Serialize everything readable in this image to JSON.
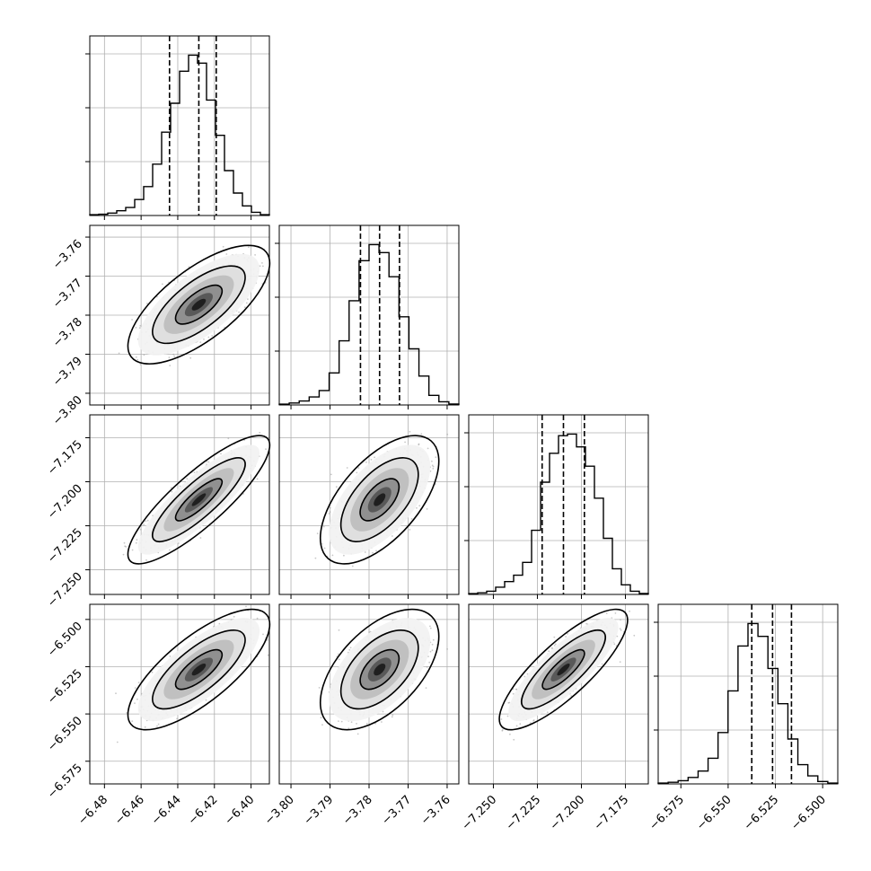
{
  "chart_data": {
    "type": "corner",
    "title": "",
    "parameters": [
      {
        "range": [
          -6.488,
          -6.39
        ],
        "xticks": [
          -6.48,
          -6.46,
          -6.44,
          -6.42,
          -6.4
        ],
        "xtick_labels": [
          "−6.48",
          "−6.46",
          "−6.44",
          "−6.42",
          "−6.40"
        ],
        "quantiles": [
          -6.4445,
          -6.4285,
          -6.419
        ],
        "hist_counts": [
          0.5,
          0.8,
          1.5,
          3,
          5,
          10,
          18,
          32,
          52,
          70,
          90,
          100,
          95,
          72,
          50,
          28,
          14,
          6,
          2,
          0.5
        ]
      },
      {
        "range": [
          -3.803,
          -3.757
        ],
        "xticks": [
          -3.8,
          -3.79,
          -3.78,
          -3.77,
          -3.76
        ],
        "xtick_labels": [
          "−3.80",
          "−3.79",
          "−3.78",
          "−3.77",
          "−3.76"
        ],
        "yticks": [
          -3.76,
          -3.77,
          -3.78,
          -3.79,
          -3.8
        ],
        "ytick_labels": [
          "−3.76",
          "−3.77",
          "−3.78",
          "−3.79",
          "−3.80"
        ],
        "quantiles": [
          -3.7822,
          -3.7773,
          -3.7722
        ],
        "hist_counts": [
          0.5,
          1.2,
          2.5,
          5,
          9,
          20,
          40,
          65,
          90,
          100,
          95,
          80,
          55,
          35,
          18,
          6,
          2,
          0.6
        ]
      },
      {
        "range": [
          -7.264,
          -7.162
        ],
        "xticks": [
          -7.25,
          -7.225,
          -7.2,
          -7.175
        ],
        "xtick_labels": [
          "−7.250",
          "−7.225",
          "−7.200",
          "−7.175"
        ],
        "yticks": [
          -7.175,
          -7.2,
          -7.225,
          -7.25
        ],
        "ytick_labels": [
          "−7.175",
          "−7.200",
          "−7.225",
          "−7.250"
        ],
        "quantiles": [
          -7.2223,
          -7.2102,
          -7.1983
        ],
        "hist_counts": [
          0.5,
          1,
          2,
          4.5,
          8,
          12,
          20,
          40,
          70,
          88,
          99,
          100,
          92,
          80,
          60,
          35,
          16,
          6,
          2,
          0.6
        ]
      },
      {
        "range": [
          -6.587,
          -6.492
        ],
        "xticks": [
          -6.575,
          -6.55,
          -6.525,
          -6.5
        ],
        "xtick_labels": [
          "−6.575",
          "−6.550",
          "−6.525",
          "−6.500"
        ],
        "yticks": [
          -6.5,
          -6.525,
          -6.55,
          -6.575
        ],
        "ytick_labels": [
          "−6.500",
          "−6.525",
          "−6.550",
          "−6.575"
        ],
        "quantiles": [
          -6.5375,
          -6.5265,
          -6.5165
        ],
        "hist_counts": [
          0.5,
          1,
          2,
          4,
          8,
          16,
          32,
          58,
          86,
          100,
          92,
          72,
          50,
          28,
          12,
          5,
          1.5,
          0.5
        ]
      }
    ],
    "correlations": {
      "1_0": 0.7,
      "2_0": 0.85,
      "2_1": 0.6,
      "3_0": 0.75,
      "3_1": 0.55,
      "3_2": 0.82
    },
    "contour_levels": [
      0.39,
      0.86,
      0.99
    ],
    "colors": {
      "line": "#000000",
      "points": "#9a9a9a",
      "grid": "#b0b0b0"
    },
    "grid": true
  }
}
